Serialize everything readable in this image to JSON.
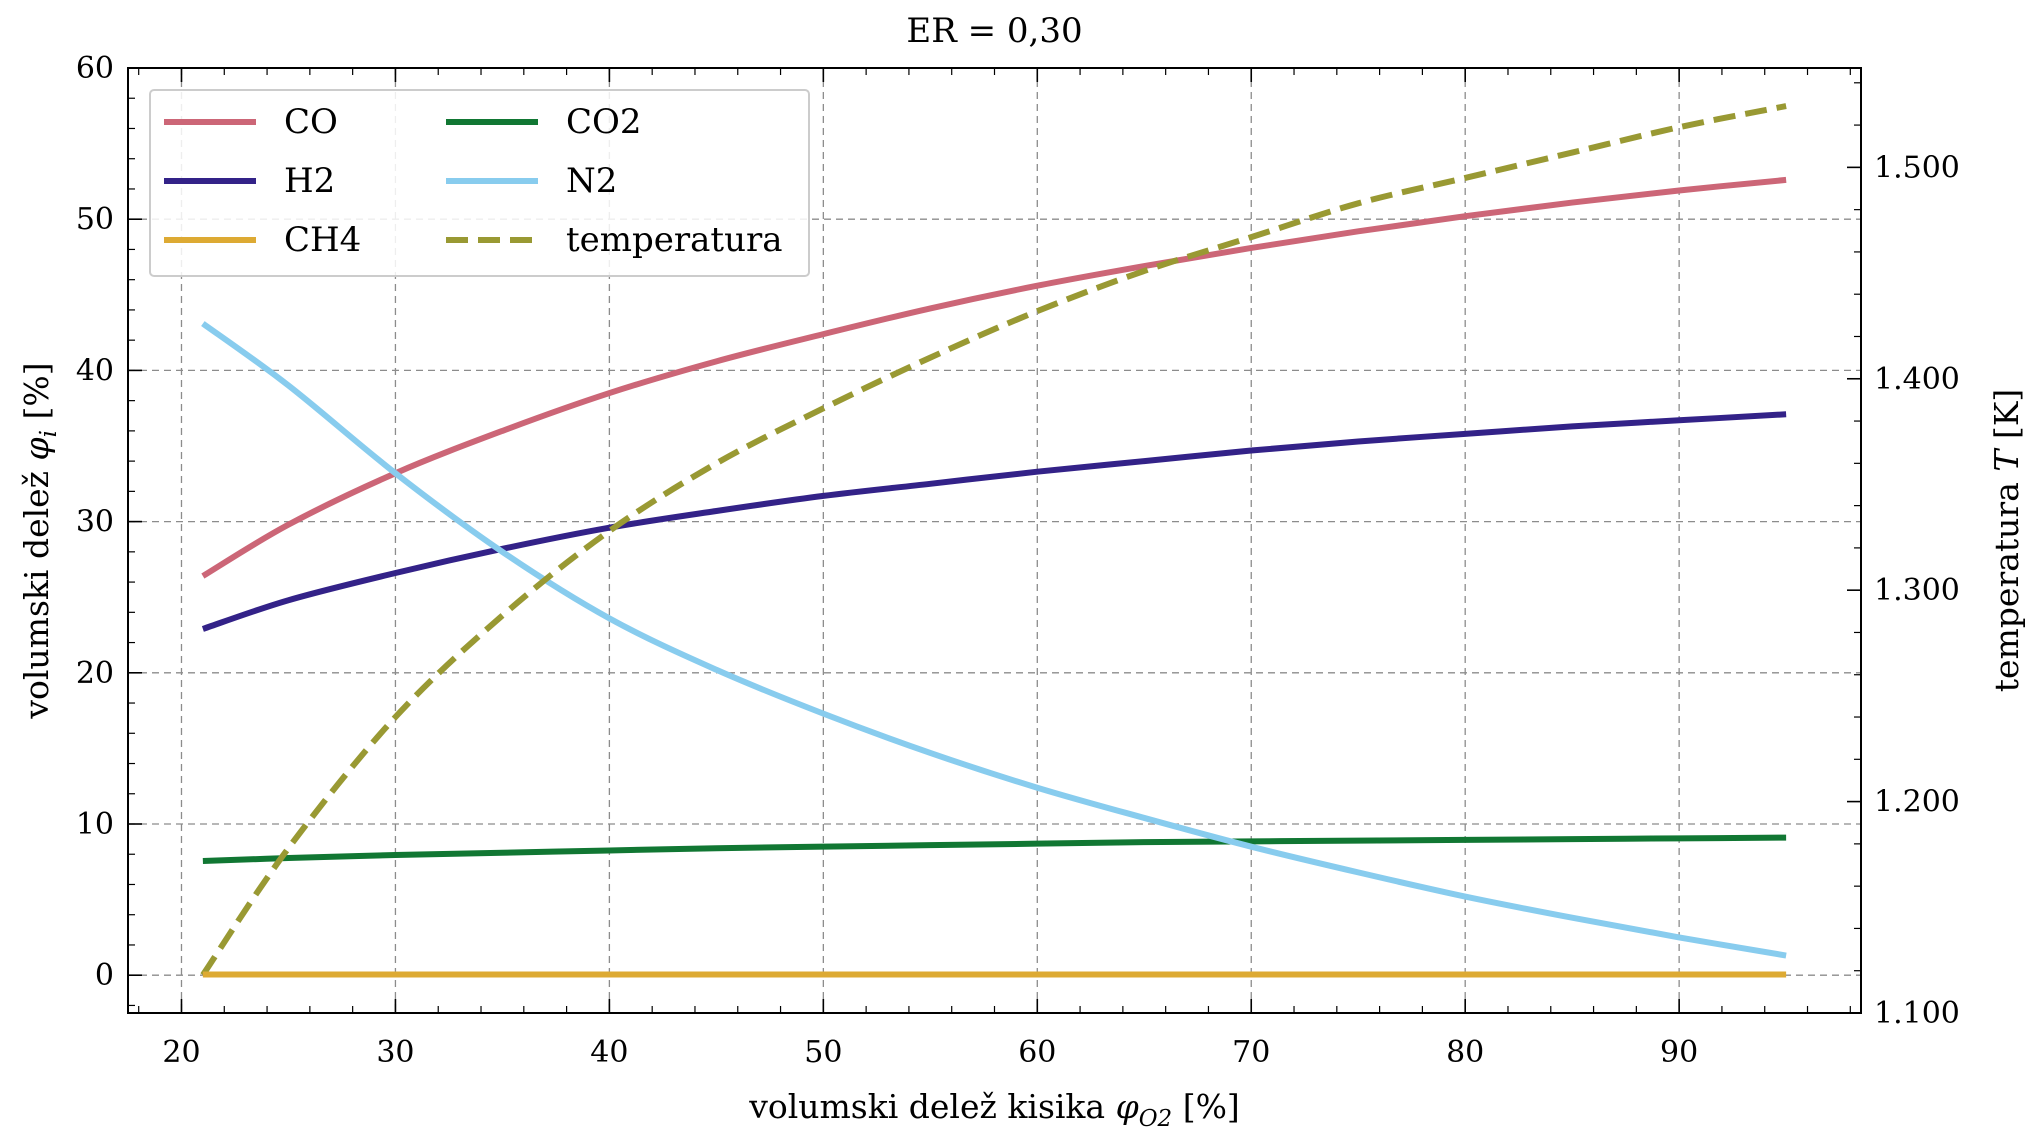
{
  "chart_data": {
    "type": "line",
    "title": "ER = 0,30",
    "xlabel_main": "volumski delež kisika ",
    "xlabel_symbol": "φ",
    "xlabel_sub": "O2",
    "xlabel_unit": " [%]",
    "ylabel_main": "volumski delež ",
    "ylabel_symbol": "φ",
    "ylabel_sub": "i",
    "ylabel_unit": " [%]",
    "y2label_main": "temperatura ",
    "y2label_symbol": "T",
    "y2label_unit": " [K]",
    "xlim": [
      17.5,
      98.5
    ],
    "ylim": [
      -2.5,
      60
    ],
    "y2lim": [
      1100,
      1547
    ],
    "xticks": [
      20,
      30,
      40,
      50,
      60,
      70,
      80,
      90
    ],
    "xtick_labels": [
      "20",
      "30",
      "40",
      "50",
      "60",
      "70",
      "80",
      "90"
    ],
    "yticks": [
      0,
      10,
      20,
      30,
      40,
      50,
      60
    ],
    "ytick_labels": [
      "0",
      "10",
      "20",
      "30",
      "40",
      "50",
      "60"
    ],
    "y2ticks": [
      1100,
      1200,
      1300,
      1400,
      1500
    ],
    "y2tick_labels": [
      "1.100",
      "1.200",
      "1.300",
      "1.400",
      "1.500"
    ],
    "grid": true,
    "legend_position": "top-left",
    "x": [
      21,
      25,
      30,
      35,
      40,
      45,
      50,
      55,
      60,
      65,
      70,
      75,
      80,
      85,
      90,
      95
    ],
    "series": [
      {
        "name": "CO",
        "axis": "left",
        "color": "#cc6677",
        "dashed": false,
        "values": [
          26.4,
          29.8,
          33.2,
          36.0,
          38.5,
          40.6,
          42.4,
          44.1,
          45.6,
          46.9,
          48.1,
          49.2,
          50.2,
          51.1,
          51.9,
          52.6
        ]
      },
      {
        "name": "H2",
        "axis": "left",
        "color": "#332288",
        "dashed": false,
        "values": [
          22.9,
          24.8,
          26.6,
          28.2,
          29.6,
          30.7,
          31.7,
          32.5,
          33.3,
          34.0,
          34.7,
          35.3,
          35.8,
          36.3,
          36.7,
          37.1
        ]
      },
      {
        "name": "CH4",
        "axis": "left",
        "color": "#ddaa33",
        "dashed": false,
        "values": [
          0.05,
          0.05,
          0.05,
          0.05,
          0.05,
          0.05,
          0.05,
          0.05,
          0.05,
          0.05,
          0.05,
          0.05,
          0.05,
          0.05,
          0.05,
          0.05
        ]
      },
      {
        "name": "CO2",
        "axis": "left",
        "color": "#117733",
        "dashed": false,
        "values": [
          7.55,
          7.75,
          7.95,
          8.1,
          8.25,
          8.4,
          8.5,
          8.6,
          8.7,
          8.8,
          8.85,
          8.9,
          8.95,
          9.0,
          9.05,
          9.1
        ]
      },
      {
        "name": "N2",
        "axis": "left",
        "color": "#88ccee",
        "dashed": false,
        "values": [
          43.1,
          39.0,
          33.2,
          28.0,
          23.6,
          20.2,
          17.3,
          14.7,
          12.4,
          10.4,
          8.5,
          6.8,
          5.2,
          3.8,
          2.5,
          1.3
        ]
      },
      {
        "name": "temperatura",
        "axis": "right",
        "color": "#999933",
        "dashed": true,
        "values": [
          1118,
          1178,
          1240,
          1288,
          1328,
          1360,
          1386,
          1410,
          1432,
          1451,
          1467,
          1483,
          1495,
          1507,
          1519,
          1529
        ]
      }
    ]
  }
}
